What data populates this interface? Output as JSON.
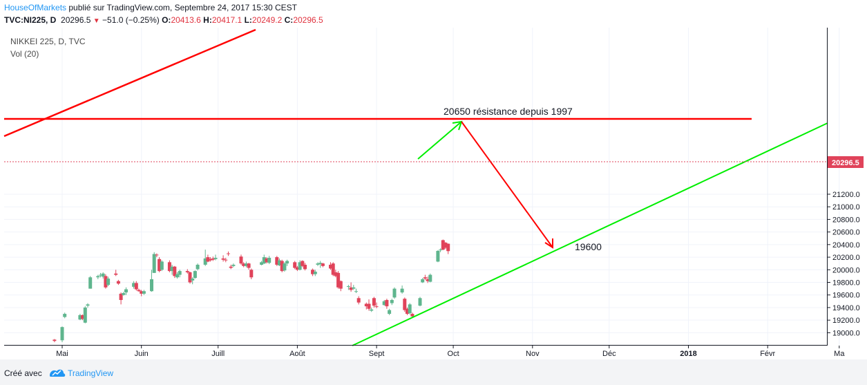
{
  "header": {
    "author": "HouseOfMarkets",
    "published_text": "publié sur TradingView.com, Septembre 24, 2017 15:30 CEST",
    "symbol": "TVC:NI225, D",
    "last": "20296.5",
    "change": "−51.0 (−0.25%)",
    "o_label": "O:",
    "o_value": "20413.6",
    "h_label": "H:",
    "h_value": "20417.1",
    "l_label": "L:",
    "l_value": "20249.2",
    "c_label": "C:",
    "c_value": "20296.5"
  },
  "legend": {
    "title": "NIKKEI 225, D, TVC",
    "volume": "Vol (20)"
  },
  "footer": {
    "created_with": "Créé avec",
    "brand": "TradingView"
  },
  "colors": {
    "up": "#5fb58e",
    "down": "#e0435a",
    "resistance": "#ff0000",
    "support": "#00ee00",
    "accent": "#2196f3"
  },
  "chart_data": {
    "type": "candlestick",
    "title": "NIKKEI 225, D, TVC",
    "y_ticks": [
      "19000.0",
      "19200.0",
      "19400.0",
      "19600.0",
      "19800.0",
      "20000.0",
      "20200.0",
      "20400.0",
      "20600.0",
      "20800.0",
      "21000.0",
      "21200.0"
    ],
    "x_ticks": [
      "Mai",
      "Juin",
      "Juill",
      "Août",
      "Sept",
      "Oct",
      "Nov",
      "Déc",
      "2018",
      "Févr",
      "Ma"
    ],
    "last_price_label": "20296.5",
    "annotations": [
      {
        "id": "resistance",
        "text": "20650 résistance depuis 1997",
        "price": 20650
      },
      {
        "id": "target",
        "text": "19600",
        "price": 19600
      }
    ],
    "candles": [
      {
        "d": "2017-04-28",
        "o": 18890,
        "h": 18900,
        "l": 18850,
        "c": 18870
      },
      {
        "d": "2017-05-01",
        "o": 18880,
        "h": 19100,
        "l": 18850,
        "c": 19090
      },
      {
        "d": "2017-05-02",
        "o": 19250,
        "h": 19320,
        "l": 19230,
        "c": 19300
      },
      {
        "d": "2017-05-08",
        "o": 19210,
        "h": 19300,
        "l": 19200,
        "c": 19280
      },
      {
        "d": "2017-05-09",
        "o": 19280,
        "h": 19290,
        "l": 19200,
        "c": 19220
      },
      {
        "d": "2017-05-10",
        "o": 19160,
        "h": 19420,
        "l": 19150,
        "c": 19400
      },
      {
        "d": "2017-05-11",
        "o": 19430,
        "h": 19470,
        "l": 19400,
        "c": 19450
      },
      {
        "d": "2017-05-12",
        "o": 19700,
        "h": 19900,
        "l": 19700,
        "c": 19880
      },
      {
        "d": "2017-05-15",
        "o": 19880,
        "h": 19920,
        "l": 19850,
        "c": 19900
      },
      {
        "d": "2017-05-16",
        "o": 19910,
        "h": 19950,
        "l": 19880,
        "c": 19920
      },
      {
        "d": "2017-05-17",
        "o": 19890,
        "h": 19960,
        "l": 19860,
        "c": 19940
      },
      {
        "d": "2017-05-18",
        "o": 19900,
        "h": 19930,
        "l": 19700,
        "c": 19720
      },
      {
        "d": "2017-05-19",
        "o": 19760,
        "h": 19890,
        "l": 19740,
        "c": 19860
      },
      {
        "d": "2017-05-22",
        "o": 19940,
        "h": 20000,
        "l": 19900,
        "c": 19920
      },
      {
        "d": "2017-05-23",
        "o": 19820,
        "h": 19840,
        "l": 19760,
        "c": 19780
      },
      {
        "d": "2017-05-24",
        "o": 19620,
        "h": 19640,
        "l": 19450,
        "c": 19520
      },
      {
        "d": "2017-05-25",
        "o": 19600,
        "h": 19650,
        "l": 19590,
        "c": 19630
      },
      {
        "d": "2017-05-26",
        "o": 19640,
        "h": 19720,
        "l": 19600,
        "c": 19690
      },
      {
        "d": "2017-05-29",
        "o": 19730,
        "h": 19820,
        "l": 19700,
        "c": 19790
      },
      {
        "d": "2017-05-30",
        "o": 19790,
        "h": 19820,
        "l": 19670,
        "c": 19690
      },
      {
        "d": "2017-05-31",
        "o": 19680,
        "h": 19700,
        "l": 19650,
        "c": 19660
      },
      {
        "d": "2017-06-01",
        "o": 19660,
        "h": 19680,
        "l": 19580,
        "c": 19620
      },
      {
        "d": "2017-06-02",
        "o": 19620,
        "h": 19680,
        "l": 19600,
        "c": 19660
      },
      {
        "d": "2017-06-05",
        "o": 19660,
        "h": 20000,
        "l": 19650,
        "c": 19850
      },
      {
        "d": "2017-06-06",
        "o": 19950,
        "h": 20280,
        "l": 19950,
        "c": 20250
      },
      {
        "d": "2017-06-07",
        "o": 20240,
        "h": 20260,
        "l": 20200,
        "c": 20230
      },
      {
        "d": "2017-06-08",
        "o": 20170,
        "h": 20200,
        "l": 19960,
        "c": 19980
      },
      {
        "d": "2017-06-09",
        "o": 20000,
        "h": 20150,
        "l": 19980,
        "c": 20130
      },
      {
        "d": "2017-06-12",
        "o": 20120,
        "h": 20150,
        "l": 19960,
        "c": 19980
      },
      {
        "d": "2017-06-13",
        "o": 19980,
        "h": 20080,
        "l": 19920,
        "c": 20050
      },
      {
        "d": "2017-06-14",
        "o": 20050,
        "h": 20060,
        "l": 19870,
        "c": 19900
      },
      {
        "d": "2017-06-15",
        "o": 19880,
        "h": 19960,
        "l": 19860,
        "c": 19930
      },
      {
        "d": "2017-06-16",
        "o": 19920,
        "h": 20000,
        "l": 19880,
        "c": 19980
      },
      {
        "d": "2017-06-19",
        "o": 19980,
        "h": 20010,
        "l": 19940,
        "c": 19960
      },
      {
        "d": "2017-06-20",
        "o": 19960,
        "h": 19970,
        "l": 19780,
        "c": 19800
      },
      {
        "d": "2017-06-21",
        "o": 19830,
        "h": 19880,
        "l": 19770,
        "c": 19860
      },
      {
        "d": "2017-06-22",
        "o": 19870,
        "h": 19990,
        "l": 19860,
        "c": 19980
      },
      {
        "d": "2017-06-23",
        "o": 20010,
        "h": 20100,
        "l": 19990,
        "c": 20080
      },
      {
        "d": "2017-06-26",
        "o": 20080,
        "h": 20320,
        "l": 20060,
        "c": 20180
      },
      {
        "d": "2017-06-27",
        "o": 20200,
        "h": 20240,
        "l": 20120,
        "c": 20130
      },
      {
        "d": "2017-06-28",
        "o": 20170,
        "h": 20200,
        "l": 20130,
        "c": 20150
      },
      {
        "d": "2017-06-29",
        "o": 20180,
        "h": 20210,
        "l": 20140,
        "c": 20160
      },
      {
        "d": "2017-06-30",
        "o": 20170,
        "h": 20240,
        "l": 20150,
        "c": 20190
      },
      {
        "d": "2017-07-03",
        "o": 20180,
        "h": 20230,
        "l": 20130,
        "c": 20160
      },
      {
        "d": "2017-07-04",
        "o": 20160,
        "h": 20190,
        "l": 20120,
        "c": 20150
      },
      {
        "d": "2017-07-05",
        "o": 20260,
        "h": 20290,
        "l": 20220,
        "c": 20250
      },
      {
        "d": "2017-07-06",
        "o": 20050,
        "h": 20080,
        "l": 20010,
        "c": 20030
      },
      {
        "d": "2017-07-07",
        "o": 20060,
        "h": 20100,
        "l": 20040,
        "c": 20080
      },
      {
        "d": "2017-07-10",
        "o": 20210,
        "h": 20240,
        "l": 20080,
        "c": 20100
      },
      {
        "d": "2017-07-11",
        "o": 20100,
        "h": 20120,
        "l": 20040,
        "c": 20060
      },
      {
        "d": "2017-07-12",
        "o": 20060,
        "h": 20130,
        "l": 20040,
        "c": 20100
      },
      {
        "d": "2017-07-13",
        "o": 20100,
        "h": 20110,
        "l": 20000,
        "c": 20030
      },
      {
        "d": "2017-07-14",
        "o": 20000,
        "h": 20020,
        "l": 19850,
        "c": 19880
      },
      {
        "d": "2017-07-18",
        "o": 20080,
        "h": 20140,
        "l": 20070,
        "c": 20120
      },
      {
        "d": "2017-07-19",
        "o": 20100,
        "h": 20240,
        "l": 20090,
        "c": 20200
      },
      {
        "d": "2017-07-20",
        "o": 20180,
        "h": 20200,
        "l": 20100,
        "c": 20120
      },
      {
        "d": "2017-07-21",
        "o": 20110,
        "h": 20220,
        "l": 20090,
        "c": 20190
      },
      {
        "d": "2017-07-24",
        "o": 20200,
        "h": 20220,
        "l": 20060,
        "c": 20080
      },
      {
        "d": "2017-07-25",
        "o": 20070,
        "h": 20180,
        "l": 20060,
        "c": 20150
      },
      {
        "d": "2017-07-26",
        "o": 20140,
        "h": 20160,
        "l": 19960,
        "c": 19980
      },
      {
        "d": "2017-07-27",
        "o": 19990,
        "h": 20120,
        "l": 19970,
        "c": 20100
      },
      {
        "d": "2017-07-28",
        "o": 20100,
        "h": 20160,
        "l": 20060,
        "c": 20140
      },
      {
        "d": "2017-07-31",
        "o": 20120,
        "h": 20140,
        "l": 20010,
        "c": 20030
      },
      {
        "d": "2017-08-01",
        "o": 20040,
        "h": 20060,
        "l": 19980,
        "c": 20000
      },
      {
        "d": "2017-08-02",
        "o": 20000,
        "h": 20150,
        "l": 19990,
        "c": 20120
      },
      {
        "d": "2017-08-03",
        "o": 20140,
        "h": 20150,
        "l": 20040,
        "c": 20060
      },
      {
        "d": "2017-08-04",
        "o": 20080,
        "h": 20110,
        "l": 19990,
        "c": 20010
      },
      {
        "d": "2017-08-07",
        "o": 20000,
        "h": 20020,
        "l": 19900,
        "c": 19930
      },
      {
        "d": "2017-08-08",
        "o": 19930,
        "h": 20000,
        "l": 19900,
        "c": 19970
      },
      {
        "d": "2017-08-09",
        "o": 20080,
        "h": 20120,
        "l": 20060,
        "c": 20100
      },
      {
        "d": "2017-08-10",
        "o": 20090,
        "h": 20140,
        "l": 20030,
        "c": 20110
      },
      {
        "d": "2017-08-11",
        "o": 20100,
        "h": 20110,
        "l": 20040,
        "c": 20060
      },
      {
        "d": "2017-08-14",
        "o": 20080,
        "h": 20120,
        "l": 20000,
        "c": 20020
      },
      {
        "d": "2017-08-15",
        "o": 20100,
        "h": 20120,
        "l": 19900,
        "c": 19920
      },
      {
        "d": "2017-08-16",
        "o": 19960,
        "h": 20000,
        "l": 19880,
        "c": 19900
      },
      {
        "d": "2017-08-17",
        "o": 19950,
        "h": 19980,
        "l": 19700,
        "c": 19720
      },
      {
        "d": "2017-08-18",
        "o": 19820,
        "h": 19830,
        "l": 19660,
        "c": 19700
      },
      {
        "d": "2017-08-21",
        "o": 19730,
        "h": 19760,
        "l": 19680,
        "c": 19740
      },
      {
        "d": "2017-08-22",
        "o": 19720,
        "h": 19800,
        "l": 19650,
        "c": 19680
      },
      {
        "d": "2017-08-23",
        "o": 19700,
        "h": 19760,
        "l": 19680,
        "c": 19720
      },
      {
        "d": "2017-08-24",
        "o": 19650,
        "h": 19700,
        "l": 19630,
        "c": 19660
      },
      {
        "d": "2017-08-25",
        "o": 19550,
        "h": 19580,
        "l": 19450,
        "c": 19480
      },
      {
        "d": "2017-08-28",
        "o": 19460,
        "h": 19480,
        "l": 19370,
        "c": 19420
      },
      {
        "d": "2017-08-29",
        "o": 19460,
        "h": 19530,
        "l": 19350,
        "c": 19380
      },
      {
        "d": "2017-08-30",
        "o": 19350,
        "h": 19400,
        "l": 19330,
        "c": 19370
      },
      {
        "d": "2017-08-31",
        "o": 19550,
        "h": 19570,
        "l": 19400,
        "c": 19430
      },
      {
        "d": "2017-09-01",
        "o": 19420,
        "h": 19480,
        "l": 19390,
        "c": 19410
      },
      {
        "d": "2017-09-04",
        "o": 19440,
        "h": 19520,
        "l": 19430,
        "c": 19500
      },
      {
        "d": "2017-09-05",
        "o": 19520,
        "h": 19540,
        "l": 19380,
        "c": 19420
      },
      {
        "d": "2017-09-06",
        "o": 19300,
        "h": 19380,
        "l": 19280,
        "c": 19360
      },
      {
        "d": "2017-09-07",
        "o": 19470,
        "h": 19540,
        "l": 19440,
        "c": 19520
      },
      {
        "d": "2017-09-08",
        "o": 19560,
        "h": 19720,
        "l": 19540,
        "c": 19700
      },
      {
        "d": "2017-09-11",
        "o": 19640,
        "h": 19750,
        "l": 19620,
        "c": 19700
      },
      {
        "d": "2017-09-12",
        "o": 19540,
        "h": 19560,
        "l": 19330,
        "c": 19360
      },
      {
        "d": "2017-09-13",
        "o": 19380,
        "h": 19400,
        "l": 19280,
        "c": 19300
      },
      {
        "d": "2017-09-14",
        "o": 19310,
        "h": 19470,
        "l": 19290,
        "c": 19450
      },
      {
        "d": "2017-09-15",
        "o": 19300,
        "h": 19320,
        "l": 19240,
        "c": 19260
      },
      {
        "d": "2017-09-18",
        "o": 19430,
        "h": 19570,
        "l": 19420,
        "c": 19550
      },
      {
        "d": "2017-09-19",
        "o": 19800,
        "h": 19870,
        "l": 19790,
        "c": 19850
      },
      {
        "d": "2017-09-20",
        "o": 19880,
        "h": 19920,
        "l": 19840,
        "c": 19860
      },
      {
        "d": "2017-09-21",
        "o": 19850,
        "h": 19890,
        "l": 19790,
        "c": 19820
      },
      {
        "d": "2017-09-22",
        "o": 19810,
        "h": 19940,
        "l": 19800,
        "c": 19920
      },
      {
        "d": "2017-09-25",
        "o": 20130,
        "h": 20310,
        "l": 20120,
        "c": 20300
      },
      {
        "d": "2017-09-26",
        "o": 20310,
        "h": 20340,
        "l": 20280,
        "c": 20320
      },
      {
        "d": "2017-09-27",
        "o": 20470,
        "h": 20480,
        "l": 20310,
        "c": 20320
      },
      {
        "d": "2017-09-28",
        "o": 20430,
        "h": 20440,
        "l": 20330,
        "c": 20350
      },
      {
        "d": "2017-09-29",
        "o": 20413.6,
        "h": 20417.1,
        "l": 20249.2,
        "c": 20296.5
      }
    ]
  }
}
